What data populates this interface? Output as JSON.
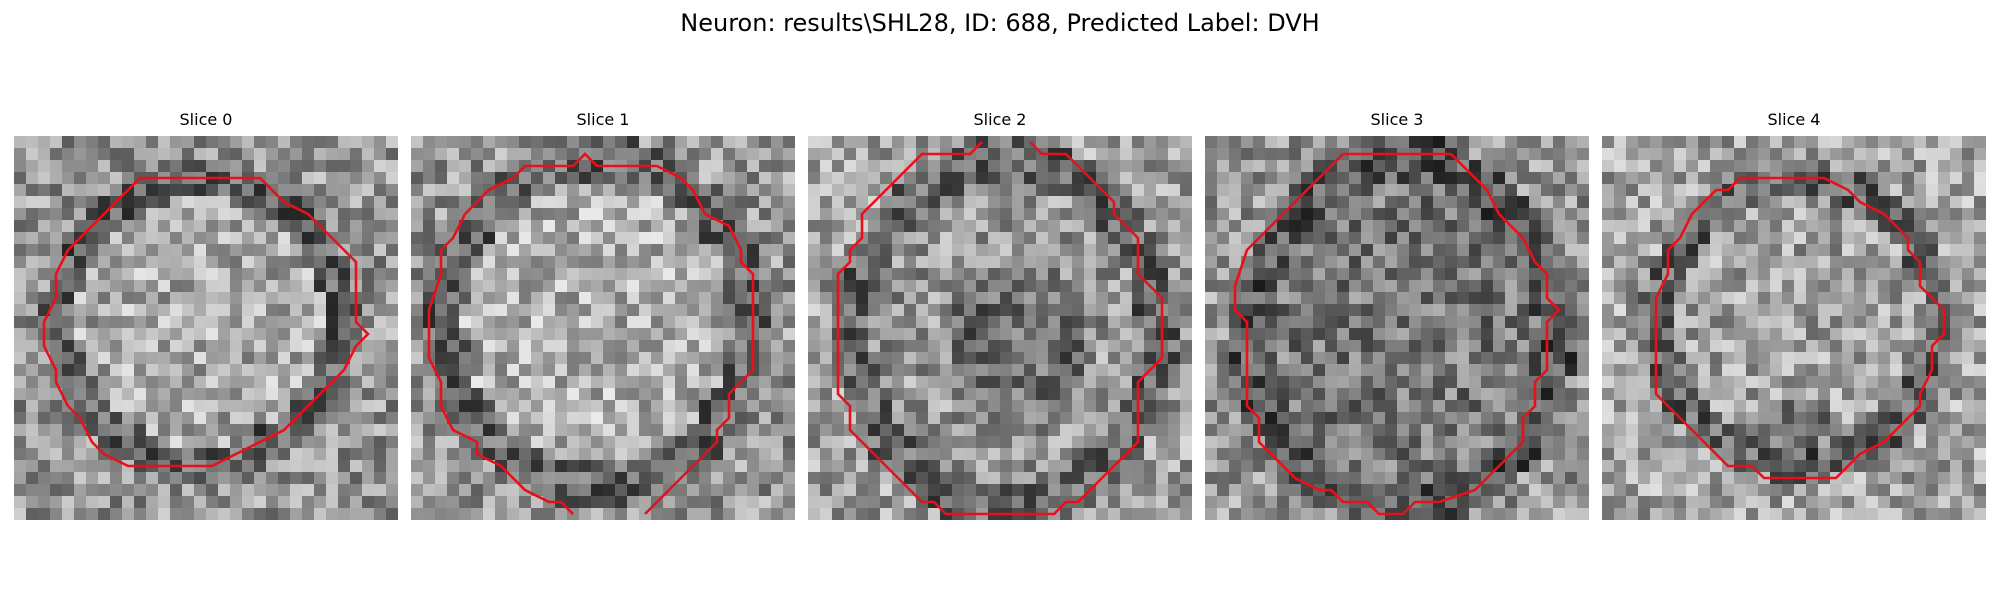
{
  "figure": {
    "title": "Neuron: results\\SHL28, ID: 688, Predicted Label: DVH"
  },
  "colors": {
    "contour": "#e8101a",
    "colormap": "gray"
  },
  "slices": [
    {
      "title": "Slice 0",
      "contour_open": false,
      "contour": [
        [
          13,
          3
        ],
        [
          20,
          3
        ],
        [
          22,
          5
        ],
        [
          24,
          6
        ],
        [
          26,
          8
        ],
        [
          27,
          9
        ],
        [
          28,
          10
        ],
        [
          28,
          15
        ],
        [
          29,
          16
        ],
        [
          28,
          17
        ],
        [
          27,
          19
        ],
        [
          25,
          21
        ],
        [
          24,
          22
        ],
        [
          23,
          23
        ],
        [
          22,
          24
        ],
        [
          20,
          25
        ],
        [
          18,
          26
        ],
        [
          16,
          27
        ],
        [
          9,
          27
        ],
        [
          7,
          26
        ],
        [
          6,
          25
        ],
        [
          5,
          23
        ],
        [
          4,
          22
        ],
        [
          3,
          20
        ],
        [
          3,
          19
        ],
        [
          2,
          17
        ],
        [
          2,
          15
        ],
        [
          3,
          13
        ],
        [
          3,
          11
        ],
        [
          4,
          9
        ],
        [
          5,
          8
        ],
        [
          6,
          7
        ],
        [
          7,
          6
        ],
        [
          8,
          5
        ],
        [
          9,
          4
        ],
        [
          10,
          3
        ]
      ]
    },
    {
      "title": "Slice 1",
      "contour_open": true,
      "contour": [
        [
          13,
          31
        ],
        [
          12,
          30
        ],
        [
          11,
          30
        ],
        [
          9,
          29
        ],
        [
          8,
          28
        ],
        [
          7,
          27
        ],
        [
          5,
          26
        ],
        [
          5,
          25
        ],
        [
          3,
          24
        ],
        [
          2,
          22
        ],
        [
          2,
          20
        ],
        [
          1,
          18
        ],
        [
          1,
          14
        ],
        [
          2,
          11
        ],
        [
          2,
          9
        ],
        [
          3,
          8
        ],
        [
          4,
          6
        ],
        [
          5,
          5
        ],
        [
          6,
          4
        ],
        [
          8,
          3
        ],
        [
          9,
          2
        ],
        [
          13,
          2
        ],
        [
          14,
          1
        ],
        [
          15,
          2
        ],
        [
          20,
          2
        ],
        [
          22,
          3
        ],
        [
          23,
          4
        ],
        [
          24,
          6
        ],
        [
          26,
          7
        ],
        [
          27,
          9
        ],
        [
          27,
          10
        ],
        [
          28,
          11
        ],
        [
          28,
          19
        ],
        [
          27,
          20
        ],
        [
          26,
          21
        ],
        [
          26,
          23
        ],
        [
          25,
          24
        ],
        [
          25,
          25
        ],
        [
          24,
          26
        ],
        [
          23,
          27
        ],
        [
          22,
          28
        ],
        [
          21,
          29
        ],
        [
          20,
          30
        ],
        [
          19,
          31
        ]
      ]
    },
    {
      "title": "Slice 2",
      "contour_open": true,
      "contour": [
        [
          18,
          0
        ],
        [
          19,
          1
        ],
        [
          21,
          1
        ],
        [
          22,
          2
        ],
        [
          23,
          3
        ],
        [
          24,
          4
        ],
        [
          25,
          5
        ],
        [
          25,
          6
        ],
        [
          26,
          7
        ],
        [
          27,
          8
        ],
        [
          27,
          11
        ],
        [
          28,
          12
        ],
        [
          29,
          13
        ],
        [
          29,
          18
        ],
        [
          28,
          19
        ],
        [
          27,
          20
        ],
        [
          27,
          25
        ],
        [
          26,
          26
        ],
        [
          25,
          27
        ],
        [
          24,
          28
        ],
        [
          23,
          29
        ],
        [
          22,
          30
        ],
        [
          21,
          30
        ],
        [
          20,
          31
        ],
        [
          11,
          31
        ],
        [
          10,
          30
        ],
        [
          9,
          30
        ],
        [
          8,
          29
        ],
        [
          7,
          28
        ],
        [
          6,
          27
        ],
        [
          5,
          26
        ],
        [
          4,
          25
        ],
        [
          3,
          24
        ],
        [
          3,
          22
        ],
        [
          2,
          21
        ],
        [
          2,
          11
        ],
        [
          3,
          10
        ],
        [
          3,
          9
        ],
        [
          4,
          8
        ],
        [
          4,
          6
        ],
        [
          5,
          5
        ],
        [
          6,
          4
        ],
        [
          7,
          3
        ],
        [
          8,
          2
        ],
        [
          9,
          1
        ],
        [
          13,
          1
        ],
        [
          14,
          0
        ]
      ]
    },
    {
      "title": "Slice 3",
      "contour_open": false,
      "contour": [
        [
          12,
          1
        ],
        [
          20,
          1
        ],
        [
          22,
          3
        ],
        [
          23,
          4
        ],
        [
          24,
          6
        ],
        [
          25,
          7
        ],
        [
          26,
          8
        ],
        [
          27,
          10
        ],
        [
          28,
          11
        ],
        [
          28,
          13
        ],
        [
          29,
          14
        ],
        [
          28,
          15
        ],
        [
          28,
          19
        ],
        [
          27,
          20
        ],
        [
          27,
          22
        ],
        [
          26,
          23
        ],
        [
          26,
          25
        ],
        [
          25,
          26
        ],
        [
          24,
          27
        ],
        [
          23,
          28
        ],
        [
          22,
          29
        ],
        [
          19,
          30
        ],
        [
          17,
          30
        ],
        [
          16,
          31
        ],
        [
          14,
          31
        ],
        [
          13,
          30
        ],
        [
          11,
          30
        ],
        [
          10,
          29
        ],
        [
          9,
          29
        ],
        [
          7,
          28
        ],
        [
          6,
          27
        ],
        [
          5,
          26
        ],
        [
          4,
          25
        ],
        [
          4,
          23
        ],
        [
          3,
          22
        ],
        [
          3,
          15
        ],
        [
          2,
          14
        ],
        [
          2,
          12
        ],
        [
          3,
          9
        ],
        [
          4,
          8
        ],
        [
          5,
          7
        ],
        [
          6,
          6
        ],
        [
          7,
          5
        ],
        [
          8,
          4
        ],
        [
          9,
          3
        ],
        [
          10,
          2
        ],
        [
          11,
          1
        ]
      ]
    },
    {
      "title": "Slice 4",
      "contour_open": false,
      "contour": [
        [
          11,
          3
        ],
        [
          18,
          3
        ],
        [
          20,
          4
        ],
        [
          21,
          5
        ],
        [
          23,
          6
        ],
        [
          24,
          7
        ],
        [
          25,
          8
        ],
        [
          25,
          9
        ],
        [
          26,
          10
        ],
        [
          26,
          12
        ],
        [
          27,
          13
        ],
        [
          28,
          14
        ],
        [
          28,
          16
        ],
        [
          27,
          17
        ],
        [
          27,
          19
        ],
        [
          26,
          21
        ],
        [
          26,
          22
        ],
        [
          25,
          23
        ],
        [
          24,
          24
        ],
        [
          23,
          25
        ],
        [
          21,
          26
        ],
        [
          20,
          27
        ],
        [
          19,
          28
        ],
        [
          13,
          28
        ],
        [
          12,
          27
        ],
        [
          10,
          27
        ],
        [
          9,
          26
        ],
        [
          8,
          25
        ],
        [
          7,
          24
        ],
        [
          6,
          23
        ],
        [
          5,
          22
        ],
        [
          4,
          21
        ],
        [
          4,
          17
        ],
        [
          4,
          13
        ],
        [
          5,
          11
        ],
        [
          5,
          9
        ],
        [
          6,
          8
        ],
        [
          7,
          6
        ],
        [
          8,
          5
        ],
        [
          9,
          4
        ],
        [
          10,
          4
        ]
      ]
    }
  ]
}
